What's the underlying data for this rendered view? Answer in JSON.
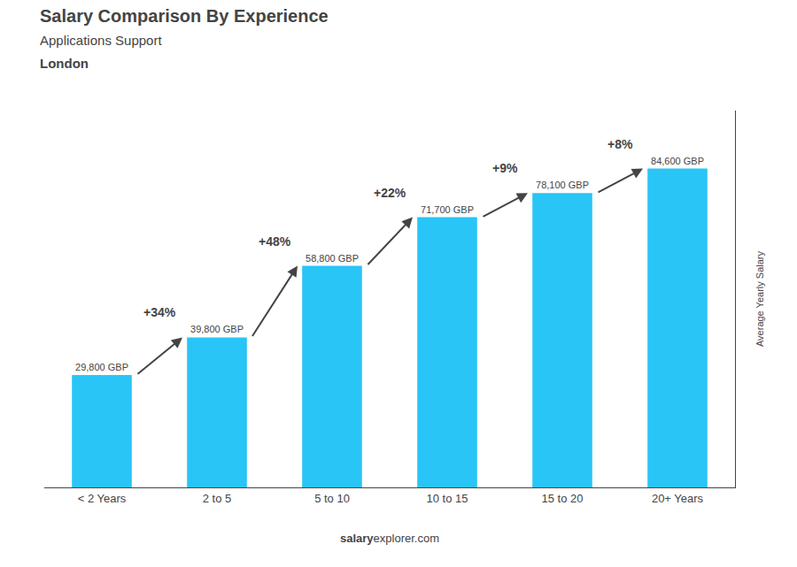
{
  "chart_data": {
    "type": "bar",
    "title": "Salary Comparison By Experience",
    "subtitle": "Applications Support",
    "location": "London",
    "ylabel": "Average Yearly Salary",
    "categories": [
      "< 2 Years",
      "2 to 5",
      "5 to 10",
      "10 to 15",
      "15 to 20",
      "20+ Years"
    ],
    "values": [
      29800,
      39800,
      58800,
      71700,
      78100,
      84600
    ],
    "value_labels": [
      "29,800 GBP",
      "39,800 GBP",
      "58,800 GBP",
      "71,700 GBP",
      "78,100 GBP",
      "84,600 GBP"
    ],
    "data_labels": true,
    "annotations": [
      "+34%",
      "+48%",
      "+22%",
      "+9%",
      "+8%"
    ],
    "footer": [
      "salary",
      "explorer.com"
    ],
    "color": "#29c5f6",
    "ylim": [
      0,
      100000
    ],
    "grid": false,
    "tick_labels": "x"
  }
}
